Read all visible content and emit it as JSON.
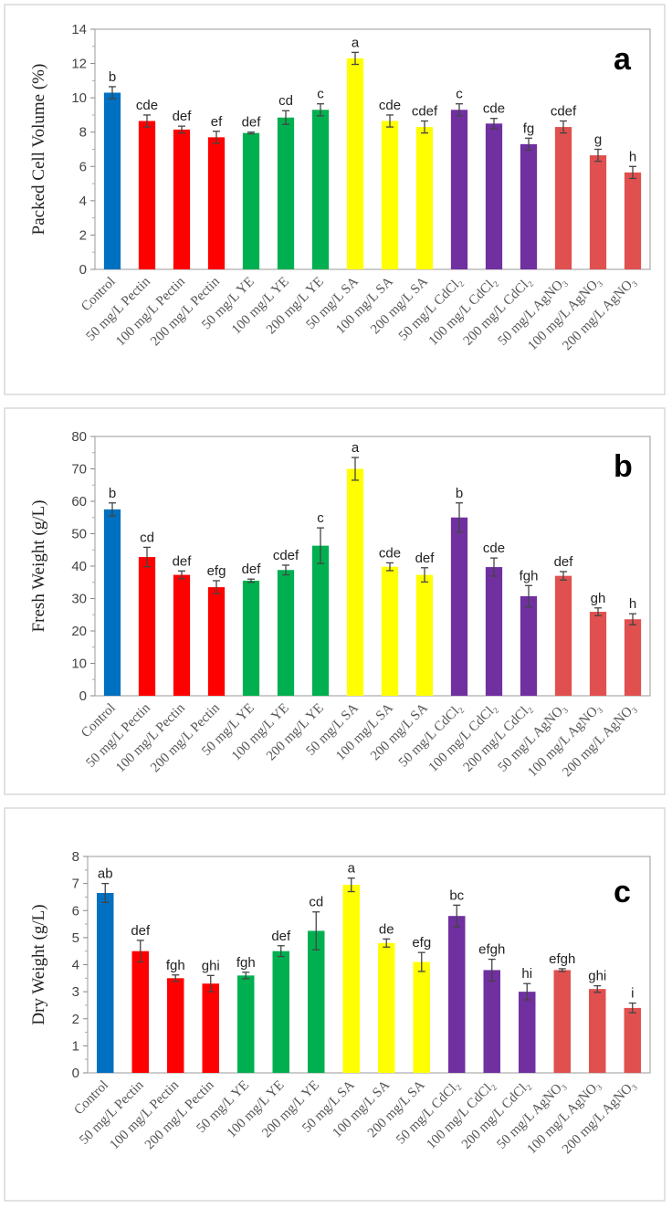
{
  "chart_data": [
    {
      "type": "bar",
      "panel_label": "a",
      "ylabel": "Packed Cell Volume (%)",
      "ylim": [
        0,
        14
      ],
      "ystep": 2,
      "grid": false,
      "categories": [
        "Control",
        "50 mg/L Pectin",
        "100 mg/L Pectin",
        "200 mg/L Pectin",
        "50 mg/L YE",
        "100 mg/L YE",
        "200 mg/L YE",
        "50 mg/L SA",
        "100 mg/L SA",
        "200 mg/L SA",
        "50 mg/L CdCl₂",
        "100 mg/L CdCl₂",
        "200 mg/L CdCl₂",
        "50 mg/L AgNO₃",
        "100 mg/L AgNO₃",
        "200 mg/L AgNO₃"
      ],
      "values": [
        10.3,
        8.65,
        8.15,
        7.7,
        7.95,
        8.85,
        9.3,
        12.3,
        8.65,
        8.3,
        9.3,
        8.5,
        7.3,
        8.3,
        6.65,
        5.65
      ],
      "errors": [
        0.35,
        0.35,
        0.2,
        0.35,
        0.05,
        0.4,
        0.35,
        0.35,
        0.35,
        0.35,
        0.35,
        0.3,
        0.35,
        0.35,
        0.35,
        0.35
      ],
      "letters": [
        "b",
        "cde",
        "def",
        "ef",
        "def",
        "cd",
        "c",
        "a",
        "cde",
        "cdef",
        "c",
        "cde",
        "fg",
        "cdef",
        "g",
        "h"
      ]
    },
    {
      "type": "bar",
      "panel_label": "b",
      "ylabel": "Fresh Weight (g/L)",
      "ylim": [
        0,
        80
      ],
      "ystep": 10,
      "grid": false,
      "categories": [
        "Control",
        "50 mg/L Pectin",
        "100 mg/L Pectin",
        "200 mg/L Pectin",
        "50 mg/L YE",
        "100 mg/L YE",
        "200 mg/L YE",
        "50 mg/L SA",
        "100 mg/L SA",
        "200 mg/L SA",
        "50 mg/L CdCl₂",
        "100 mg/L CdCl₂",
        "200 mg/L CdCl₂",
        "50 mg/L AgNO₃",
        "100 mg/L AgNO₃",
        "200 mg/L AgNO₃"
      ],
      "values": [
        57.5,
        42.8,
        37.3,
        33.5,
        35.5,
        38.8,
        46.3,
        70,
        39.8,
        37.3,
        55,
        39.7,
        30.7,
        37,
        25.9,
        23.6
      ],
      "errors": [
        2,
        3,
        1.2,
        2,
        0.5,
        1.5,
        5.5,
        3.5,
        1.2,
        2.2,
        4.5,
        2.8,
        3.3,
        1.3,
        1.2,
        1.7
      ],
      "letters": [
        "b",
        "cd",
        "def",
        "efg",
        "def",
        "cdef",
        "c",
        "a",
        "cde",
        "def",
        "b",
        "cde",
        "fgh",
        "def",
        "gh",
        "h"
      ]
    },
    {
      "type": "bar",
      "panel_label": "c",
      "ylabel": "Dry Weight (g/L)",
      "ylim": [
        0,
        8
      ],
      "ystep": 1,
      "grid": false,
      "categories": [
        "Control",
        "50 mg/L Pectin",
        "100 mg/L Pectin",
        "200 mg/L Pectin",
        "50 mg/L YE",
        "100 mg/L YE",
        "200 mg/L YE",
        "50 mg/L SA",
        "100 mg/L SA",
        "200 mg/L SA",
        "50 mg/L CdCl₂",
        "100 mg/L CdCl₂",
        "200 mg/L CdCl₂",
        "50 mg/L AgNO₃",
        "100 mg/L AgNO₃",
        "200 mg/L AgNO₃"
      ],
      "values": [
        6.65,
        4.5,
        3.5,
        3.3,
        3.6,
        4.5,
        5.25,
        6.95,
        4.8,
        4.1,
        5.8,
        3.8,
        3.0,
        3.8,
        3.1,
        2.4
      ],
      "errors": [
        0.35,
        0.4,
        0.12,
        0.3,
        0.12,
        0.2,
        0.7,
        0.25,
        0.15,
        0.35,
        0.4,
        0.4,
        0.3,
        0.05,
        0.12,
        0.18
      ],
      "letters": [
        "ab",
        "def",
        "fgh",
        "ghi",
        "fgh",
        "def",
        "cd",
        "a",
        "de",
        "efg",
        "bc",
        "efgh",
        "hi",
        "efgh",
        "ghi",
        "i"
      ]
    }
  ],
  "colors": [
    "#0070c0",
    "#ff0000",
    "#ff0000",
    "#ff0000",
    "#00b050",
    "#00b050",
    "#00b050",
    "#ffff00",
    "#ffff00",
    "#ffff00",
    "#7030a0",
    "#7030a0",
    "#7030a0",
    "#e0504f",
    "#e0504f",
    "#e0504f"
  ]
}
